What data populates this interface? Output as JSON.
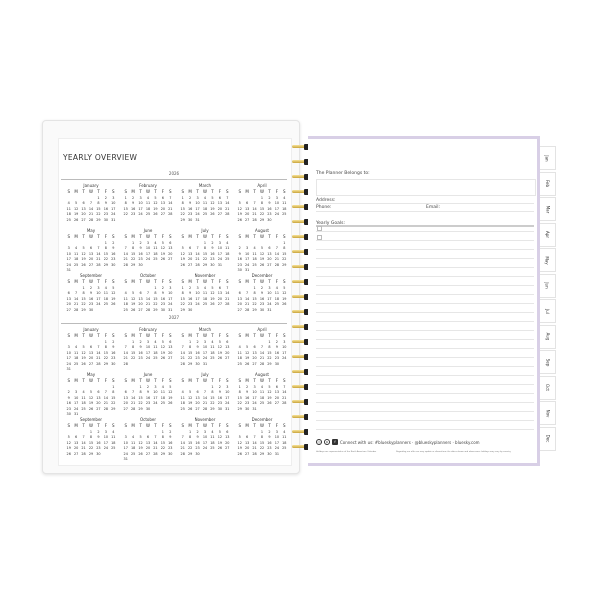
{
  "left_page": {
    "title": "YEARLY OVERVIEW",
    "weekday_headers": [
      "S",
      "M",
      "T",
      "W",
      "T",
      "F",
      "S"
    ],
    "years": [
      {
        "year": "2026",
        "months": [
          {
            "name": "January",
            "offset": 4,
            "days": 31
          },
          {
            "name": "February",
            "offset": 0,
            "days": 28
          },
          {
            "name": "March",
            "offset": 0,
            "days": 31
          },
          {
            "name": "April",
            "offset": 3,
            "days": 30
          },
          {
            "name": "May",
            "offset": 5,
            "days": 31
          },
          {
            "name": "June",
            "offset": 1,
            "days": 30
          },
          {
            "name": "July",
            "offset": 3,
            "days": 31
          },
          {
            "name": "August",
            "offset": 6,
            "days": 31
          },
          {
            "name": "September",
            "offset": 2,
            "days": 30
          },
          {
            "name": "October",
            "offset": 4,
            "days": 31
          },
          {
            "name": "November",
            "offset": 0,
            "days": 30
          },
          {
            "name": "December",
            "offset": 2,
            "days": 31
          }
        ]
      },
      {
        "year": "2027",
        "months": [
          {
            "name": "January",
            "offset": 5,
            "days": 31
          },
          {
            "name": "February",
            "offset": 1,
            "days": 28
          },
          {
            "name": "March",
            "offset": 1,
            "days": 31
          },
          {
            "name": "April",
            "offset": 4,
            "days": 30
          },
          {
            "name": "May",
            "offset": 6,
            "days": 31
          },
          {
            "name": "June",
            "offset": 2,
            "days": 30
          },
          {
            "name": "July",
            "offset": 4,
            "days": 31
          },
          {
            "name": "August",
            "offset": 0,
            "days": 31
          },
          {
            "name": "September",
            "offset": 3,
            "days": 30
          },
          {
            "name": "October",
            "offset": 5,
            "days": 31
          },
          {
            "name": "November",
            "offset": 1,
            "days": 30
          },
          {
            "name": "December",
            "offset": 3,
            "days": 31
          }
        ]
      }
    ]
  },
  "right_page": {
    "belongs_label": "The Planner Belongs to:",
    "address_label": "Address:",
    "phone_label": "Phone:",
    "email_label": "Email:",
    "goals_label": "Yearly Goals:",
    "connect_text": "Connect with us: #blueskyplanners · @blueskyplanners · bluesky.com",
    "footer_left": "Holidays are representative of the North American Calendar",
    "footer_right": "Regarding our offer we may update or discontinue the dates shown and observance holidays may vary by country",
    "social_icons": [
      "instagram-icon",
      "pinterest-icon",
      "facebook-icon"
    ]
  },
  "tabs": [
    "Jan",
    "Feb",
    "Mar",
    "Apr",
    "May",
    "Jun",
    "Jul",
    "Aug",
    "Sep",
    "Oct",
    "Nov",
    "Dec"
  ],
  "colors": {
    "tab_border": "#d8cfe6",
    "coil": "#e0c060"
  }
}
